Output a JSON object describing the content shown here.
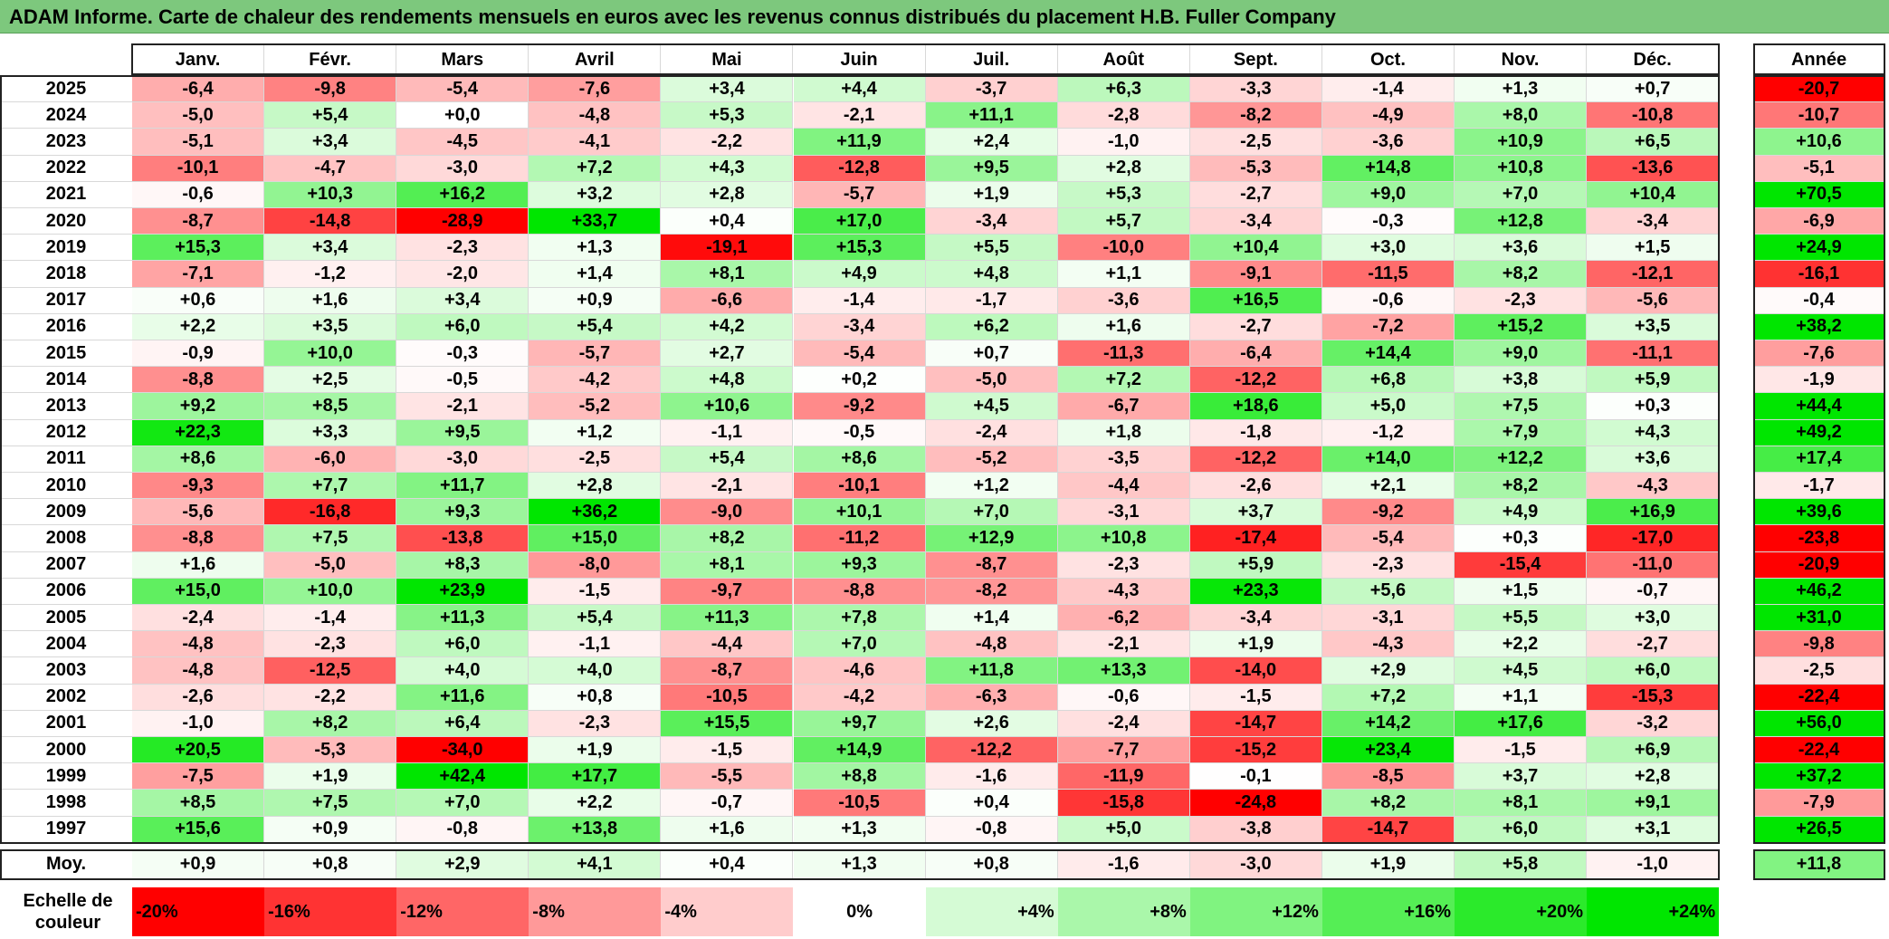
{
  "title": "ADAM Informe. Carte de chaleur des rendements mensuels en euros avec les revenus connus distribués du placement H.B. Fuller Company",
  "colors": {
    "title_bg": "#7dc87d",
    "negative": "#ff0000",
    "positive": "#00e600",
    "neutral": "#ffffff"
  },
  "chart_data": {
    "type": "heatmap",
    "columns": [
      "Janv.",
      "Févr.",
      "Mars",
      "Avril",
      "Mai",
      "Juin",
      "Juil.",
      "Août",
      "Sept.",
      "Oct.",
      "Nov.",
      "Déc."
    ],
    "annual_label": "Année",
    "rows": [
      {
        "year": "2025",
        "values": [
          "-6,4",
          "-9,8",
          "-5,4",
          "-7,6",
          "+3,4",
          "+4,4",
          "-3,7",
          "+6,3",
          "-3,3",
          "-1,4",
          "+1,3",
          "+0,7"
        ],
        "annual": "-20,7"
      },
      {
        "year": "2024",
        "values": [
          "-5,0",
          "+5,4",
          "+0,0",
          "-4,8",
          "+5,3",
          "-2,1",
          "+11,1",
          "-2,8",
          "-8,2",
          "-4,9",
          "+8,0",
          "-10,8"
        ],
        "annual": "-10,7"
      },
      {
        "year": "2023",
        "values": [
          "-5,1",
          "+3,4",
          "-4,5",
          "-4,1",
          "-2,2",
          "+11,9",
          "+2,4",
          "-1,0",
          "-2,5",
          "-3,6",
          "+10,9",
          "+6,5"
        ],
        "annual": "+10,6"
      },
      {
        "year": "2022",
        "values": [
          "-10,1",
          "-4,7",
          "-3,0",
          "+7,2",
          "+4,3",
          "-12,8",
          "+9,5",
          "+2,8",
          "-5,3",
          "+14,8",
          "+10,8",
          "-13,6"
        ],
        "annual": "-5,1"
      },
      {
        "year": "2021",
        "values": [
          "-0,6",
          "+10,3",
          "+16,2",
          "+3,2",
          "+2,8",
          "-5,7",
          "+1,9",
          "+5,3",
          "-2,7",
          "+9,0",
          "+7,0",
          "+10,4"
        ],
        "annual": "+70,5"
      },
      {
        "year": "2020",
        "values": [
          "-8,7",
          "-14,8",
          "-28,9",
          "+33,7",
          "+0,4",
          "+17,0",
          "-3,4",
          "+5,7",
          "-3,4",
          "-0,3",
          "+12,8",
          "-3,4"
        ],
        "annual": "-6,9"
      },
      {
        "year": "2019",
        "values": [
          "+15,3",
          "+3,4",
          "-2,3",
          "+1,3",
          "-19,1",
          "+15,3",
          "+5,5",
          "-10,0",
          "+10,4",
          "+3,0",
          "+3,6",
          "+1,5"
        ],
        "annual": "+24,9"
      },
      {
        "year": "2018",
        "values": [
          "-7,1",
          "-1,2",
          "-2,0",
          "+1,4",
          "+8,1",
          "+4,9",
          "+4,8",
          "+1,1",
          "-9,1",
          "-11,5",
          "+8,2",
          "-12,1"
        ],
        "annual": "-16,1"
      },
      {
        "year": "2017",
        "values": [
          "+0,6",
          "+1,6",
          "+3,4",
          "+0,9",
          "-6,6",
          "-1,4",
          "-1,7",
          "-3,6",
          "+16,5",
          "-0,6",
          "-2,3",
          "-5,6"
        ],
        "annual": "-0,4"
      },
      {
        "year": "2016",
        "values": [
          "+2,2",
          "+3,5",
          "+6,0",
          "+5,4",
          "+4,2",
          "-3,4",
          "+6,2",
          "+1,6",
          "-2,7",
          "-7,2",
          "+15,2",
          "+3,5"
        ],
        "annual": "+38,2"
      },
      {
        "year": "2015",
        "values": [
          "-0,9",
          "+10,0",
          "-0,3",
          "-5,7",
          "+2,7",
          "-5,4",
          "+0,7",
          "-11,3",
          "-6,4",
          "+14,4",
          "+9,0",
          "-11,1"
        ],
        "annual": "-7,6"
      },
      {
        "year": "2014",
        "values": [
          "-8,8",
          "+2,5",
          "-0,5",
          "-4,2",
          "+4,8",
          "+0,2",
          "-5,0",
          "+7,2",
          "-12,2",
          "+6,8",
          "+3,8",
          "+5,9"
        ],
        "annual": "-1,9"
      },
      {
        "year": "2013",
        "values": [
          "+9,2",
          "+8,5",
          "-2,1",
          "-5,2",
          "+10,6",
          "-9,2",
          "+4,5",
          "-6,7",
          "+18,6",
          "+5,0",
          "+7,5",
          "+0,3"
        ],
        "annual": "+44,4"
      },
      {
        "year": "2012",
        "values": [
          "+22,3",
          "+3,3",
          "+9,5",
          "+1,2",
          "-1,1",
          "-0,5",
          "-2,4",
          "+1,8",
          "-1,8",
          "-1,2",
          "+7,9",
          "+4,3"
        ],
        "annual": "+49,2"
      },
      {
        "year": "2011",
        "values": [
          "+8,6",
          "-6,0",
          "-3,0",
          "-2,5",
          "+5,4",
          "+8,6",
          "-5,2",
          "-3,5",
          "-12,2",
          "+14,0",
          "+12,2",
          "+3,6"
        ],
        "annual": "+17,4"
      },
      {
        "year": "2010",
        "values": [
          "-9,3",
          "+7,7",
          "+11,7",
          "+2,8",
          "-2,1",
          "-10,1",
          "+1,2",
          "-4,4",
          "-2,6",
          "+2,1",
          "+8,2",
          "-4,3"
        ],
        "annual": "-1,7"
      },
      {
        "year": "2009",
        "values": [
          "-5,6",
          "-16,8",
          "+9,3",
          "+36,2",
          "-9,0",
          "+10,1",
          "+7,0",
          "-3,1",
          "+3,7",
          "-9,2",
          "+4,9",
          "+16,9"
        ],
        "annual": "+39,6"
      },
      {
        "year": "2008",
        "values": [
          "-8,8",
          "+7,5",
          "-13,8",
          "+15,0",
          "+8,2",
          "-11,2",
          "+12,9",
          "+10,8",
          "-17,4",
          "-5,4",
          "+0,3",
          "-17,0"
        ],
        "annual": "-23,8"
      },
      {
        "year": "2007",
        "values": [
          "+1,6",
          "-5,0",
          "+8,3",
          "-8,0",
          "+8,1",
          "+9,3",
          "-8,7",
          "-2,3",
          "+5,9",
          "-2,3",
          "-15,4",
          "-11,0"
        ],
        "annual": "-20,9"
      },
      {
        "year": "2006",
        "values": [
          "+15,0",
          "+10,0",
          "+23,9",
          "-1,5",
          "-9,7",
          "-8,8",
          "-8,2",
          "-4,3",
          "+23,3",
          "+5,6",
          "+1,5",
          "-0,7"
        ],
        "annual": "+46,2"
      },
      {
        "year": "2005",
        "values": [
          "-2,4",
          "-1,4",
          "+11,3",
          "+5,4",
          "+11,3",
          "+7,8",
          "+1,4",
          "-6,2",
          "-3,4",
          "-3,1",
          "+5,5",
          "+3,0"
        ],
        "annual": "+31,0"
      },
      {
        "year": "2004",
        "values": [
          "-4,8",
          "-2,3",
          "+6,0",
          "-1,1",
          "-4,4",
          "+7,0",
          "-4,8",
          "-2,1",
          "+1,9",
          "-4,3",
          "+2,2",
          "-2,7"
        ],
        "annual": "-9,8"
      },
      {
        "year": "2003",
        "values": [
          "-4,8",
          "-12,5",
          "+4,0",
          "+4,0",
          "-8,7",
          "-4,6",
          "+11,8",
          "+13,3",
          "-14,0",
          "+2,9",
          "+4,5",
          "+6,0"
        ],
        "annual": "-2,5"
      },
      {
        "year": "2002",
        "values": [
          "-2,6",
          "-2,2",
          "+11,6",
          "+0,8",
          "-10,5",
          "-4,2",
          "-6,3",
          "-0,6",
          "-1,5",
          "+7,2",
          "+1,1",
          "-15,3"
        ],
        "annual": "-22,4"
      },
      {
        "year": "2001",
        "values": [
          "-1,0",
          "+8,2",
          "+6,4",
          "-2,3",
          "+15,5",
          "+9,7",
          "+2,6",
          "-2,4",
          "-14,7",
          "+14,2",
          "+17,6",
          "-3,2"
        ],
        "annual": "+56,0"
      },
      {
        "year": "2000",
        "values": [
          "+20,5",
          "-5,3",
          "-34,0",
          "+1,9",
          "-1,5",
          "+14,9",
          "-12,2",
          "-7,7",
          "-15,2",
          "+23,4",
          "-1,5",
          "+6,9"
        ],
        "annual": "-22,4"
      },
      {
        "year": "1999",
        "values": [
          "-7,5",
          "+1,9",
          "+42,4",
          "+17,7",
          "-5,5",
          "+8,8",
          "-1,6",
          "-11,9",
          "-0,1",
          "-8,5",
          "+3,7",
          "+2,8"
        ],
        "annual": "+37,2"
      },
      {
        "year": "1998",
        "values": [
          "+8,5",
          "+7,5",
          "+7,0",
          "+2,2",
          "-0,7",
          "-10,5",
          "+0,4",
          "-15,8",
          "-24,8",
          "+8,2",
          "+8,1",
          "+9,1"
        ],
        "annual": "-7,9"
      },
      {
        "year": "1997",
        "values": [
          "+15,6",
          "+0,9",
          "-0,8",
          "+13,8",
          "+1,6",
          "+1,3",
          "-0,8",
          "+5,0",
          "-3,8",
          "-14,7",
          "+6,0",
          "+3,1"
        ],
        "annual": "+26,5"
      }
    ],
    "average": {
      "label": "Moy.",
      "values": [
        "+0,9",
        "+0,8",
        "+2,9",
        "+4,1",
        "+0,4",
        "+1,3",
        "+0,8",
        "-1,6",
        "-3,0",
        "+1,9",
        "+5,8",
        "-1,0"
      ],
      "annual": "+11,8"
    },
    "scale": {
      "label_line1": "Echelle de",
      "label_line2": "couleur",
      "steps": [
        "-20%",
        "-16%",
        "-12%",
        "-8%",
        "-4%",
        "0%",
        "+4%",
        "+8%",
        "+12%",
        "+16%",
        "+20%",
        "+24%"
      ]
    },
    "color_range": [
      -20,
      24
    ]
  }
}
